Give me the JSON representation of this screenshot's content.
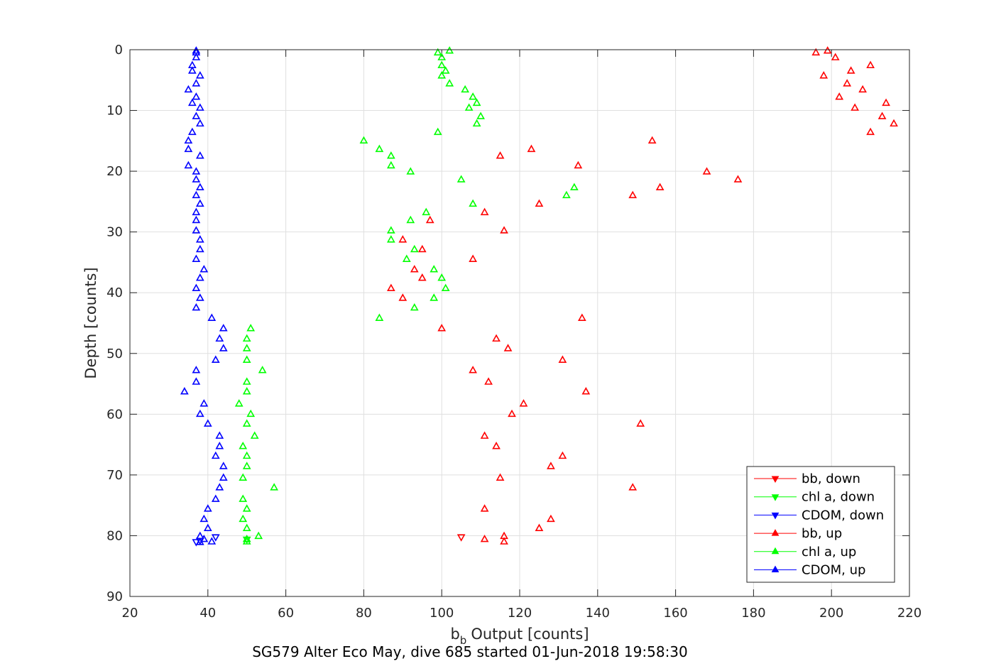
{
  "chart_data": {
    "type": "scatter",
    "title": "SG579 Alter Eco May, dive 685 started 01-Jun-2018 19:58:30",
    "xlabel": "Output [counts]",
    "xlabel_base": "b",
    "xlabel_sub": "b",
    "ylabel": "Depth [counts]",
    "xlim": [
      20,
      220
    ],
    "ylim": [
      0,
      90
    ],
    "y_reversed": true,
    "grid": true,
    "x_ticks": [
      "20",
      "40",
      "60",
      "80",
      "100",
      "120",
      "140",
      "160",
      "180",
      "200",
      "220"
    ],
    "y_ticks": [
      "0",
      "10",
      "20",
      "30",
      "40",
      "50",
      "60",
      "70",
      "80",
      "90"
    ],
    "legend_position": "bottom-right",
    "series": [
      {
        "name": "bb, down",
        "color": "#ff0000",
        "marker": "triangle-down",
        "points": [
          [
            105,
            80.2
          ]
        ]
      },
      {
        "name": "chl a, down",
        "color": "#00ff00",
        "marker": "triangle-down",
        "points": [
          [
            50,
            80.6
          ]
        ]
      },
      {
        "name": "CDOM, down",
        "color": "#0000ff",
        "marker": "triangle-down",
        "points": [
          [
            42,
            80.2
          ],
          [
            38,
            80.8
          ],
          [
            37,
            81.0
          ]
        ]
      },
      {
        "name": "bb, up",
        "color": "#ff0000",
        "marker": "triangle-up",
        "points": [
          [
            199,
            0.2
          ],
          [
            196,
            0.5
          ],
          [
            201,
            1.3
          ],
          [
            210,
            2.6
          ],
          [
            205,
            3.5
          ],
          [
            198,
            4.3
          ],
          [
            204,
            5.6
          ],
          [
            208,
            6.6
          ],
          [
            202,
            7.8
          ],
          [
            214,
            8.8
          ],
          [
            206,
            9.6
          ],
          [
            213,
            11
          ],
          [
            216,
            12.2
          ],
          [
            210,
            13.6
          ],
          [
            154,
            15
          ],
          [
            123,
            16.4
          ],
          [
            115,
            17.5
          ],
          [
            135,
            19.1
          ],
          [
            168,
            20.1
          ],
          [
            176,
            21.4
          ],
          [
            156,
            22.7
          ],
          [
            149,
            24
          ],
          [
            125,
            25.4
          ],
          [
            111,
            26.8
          ],
          [
            97,
            28.1
          ],
          [
            116,
            29.8
          ],
          [
            90,
            31.3
          ],
          [
            95,
            32.9
          ],
          [
            108,
            34.5
          ],
          [
            93,
            36.2
          ],
          [
            95,
            37.6
          ],
          [
            87,
            39.3
          ],
          [
            90,
            40.9
          ],
          [
            136,
            44.2
          ],
          [
            100,
            45.9
          ],
          [
            114,
            47.6
          ],
          [
            117,
            49.2
          ],
          [
            131,
            51.1
          ],
          [
            108,
            52.8
          ],
          [
            112,
            54.7
          ],
          [
            137,
            56.3
          ],
          [
            121,
            58.3
          ],
          [
            118,
            60
          ],
          [
            151,
            61.6
          ],
          [
            111,
            63.6
          ],
          [
            114,
            65.3
          ],
          [
            131,
            66.9
          ],
          [
            128,
            68.6
          ],
          [
            115,
            70.5
          ],
          [
            149,
            72.1
          ],
          [
            111,
            75.6
          ],
          [
            128,
            77.3
          ],
          [
            125,
            78.8
          ],
          [
            116,
            80.1
          ],
          [
            111,
            80.6
          ],
          [
            116,
            81
          ]
        ]
      },
      {
        "name": "chl a, up",
        "color": "#00ff00",
        "marker": "triangle-up",
        "points": [
          [
            102,
            0.2
          ],
          [
            99,
            0.5
          ],
          [
            100,
            1.3
          ],
          [
            100,
            2.6
          ],
          [
            101,
            3.5
          ],
          [
            100,
            4.3
          ],
          [
            102,
            5.6
          ],
          [
            106,
            6.6
          ],
          [
            108,
            7.8
          ],
          [
            109,
            8.8
          ],
          [
            107,
            9.6
          ],
          [
            110,
            11
          ],
          [
            109,
            12.2
          ],
          [
            99,
            13.6
          ],
          [
            80,
            15
          ],
          [
            84,
            16.4
          ],
          [
            87,
            17.5
          ],
          [
            87,
            19.1
          ],
          [
            92,
            20.1
          ],
          [
            105,
            21.4
          ],
          [
            134,
            22.7
          ],
          [
            132,
            24
          ],
          [
            108,
            25.4
          ],
          [
            96,
            26.8
          ],
          [
            92,
            28.1
          ],
          [
            87,
            29.8
          ],
          [
            87,
            31.3
          ],
          [
            93,
            32.9
          ],
          [
            91,
            34.5
          ],
          [
            98,
            36.2
          ],
          [
            100,
            37.6
          ],
          [
            101,
            39.3
          ],
          [
            98,
            40.9
          ],
          [
            93,
            42.5
          ],
          [
            84,
            44.2
          ],
          [
            51,
            45.9
          ],
          [
            50,
            47.6
          ],
          [
            50,
            49.2
          ],
          [
            50,
            51.1
          ],
          [
            54,
            52.8
          ],
          [
            50,
            54.7
          ],
          [
            50,
            56.3
          ],
          [
            48,
            58.3
          ],
          [
            51,
            60
          ],
          [
            50,
            61.6
          ],
          [
            52,
            63.6
          ],
          [
            49,
            65.3
          ],
          [
            50,
            66.9
          ],
          [
            50,
            68.6
          ],
          [
            49,
            70.5
          ],
          [
            57,
            72.1
          ],
          [
            49,
            74
          ],
          [
            50,
            75.6
          ],
          [
            49,
            77.3
          ],
          [
            50,
            78.8
          ],
          [
            53,
            80.1
          ],
          [
            50,
            80.6
          ],
          [
            50,
            81
          ]
        ]
      },
      {
        "name": "CDOM, up",
        "color": "#0000ff",
        "marker": "triangle-up",
        "points": [
          [
            37,
            0.2
          ],
          [
            37,
            0.5
          ],
          [
            37,
            1.3
          ],
          [
            36,
            2.6
          ],
          [
            36,
            3.5
          ],
          [
            38,
            4.3
          ],
          [
            37,
            5.6
          ],
          [
            35,
            6.6
          ],
          [
            37,
            7.8
          ],
          [
            36,
            8.8
          ],
          [
            38,
            9.6
          ],
          [
            37,
            11
          ],
          [
            38,
            12.2
          ],
          [
            36,
            13.6
          ],
          [
            35,
            15
          ],
          [
            35,
            16.4
          ],
          [
            38,
            17.5
          ],
          [
            35,
            19.1
          ],
          [
            37,
            20.1
          ],
          [
            37,
            21.4
          ],
          [
            38,
            22.7
          ],
          [
            37,
            24
          ],
          [
            38,
            25.4
          ],
          [
            37,
            26.8
          ],
          [
            37,
            28.1
          ],
          [
            37,
            29.8
          ],
          [
            38,
            31.3
          ],
          [
            38,
            32.9
          ],
          [
            37,
            34.5
          ],
          [
            39,
            36.2
          ],
          [
            38,
            37.6
          ],
          [
            37,
            39.3
          ],
          [
            38,
            40.9
          ],
          [
            37,
            42.5
          ],
          [
            41,
            44.2
          ],
          [
            44,
            45.9
          ],
          [
            43,
            47.6
          ],
          [
            44,
            49.2
          ],
          [
            42,
            51.1
          ],
          [
            37,
            52.8
          ],
          [
            37,
            54.7
          ],
          [
            34,
            56.3
          ],
          [
            39,
            58.3
          ],
          [
            38,
            60
          ],
          [
            40,
            61.6
          ],
          [
            43,
            63.6
          ],
          [
            43,
            65.3
          ],
          [
            42,
            66.9
          ],
          [
            44,
            68.6
          ],
          [
            44,
            70.5
          ],
          [
            43,
            72.1
          ],
          [
            42,
            74
          ],
          [
            40,
            75.6
          ],
          [
            39,
            77.3
          ],
          [
            40,
            78.8
          ],
          [
            38,
            80.1
          ],
          [
            39,
            80.6
          ],
          [
            41,
            81
          ],
          [
            38,
            81.1
          ]
        ]
      }
    ]
  }
}
